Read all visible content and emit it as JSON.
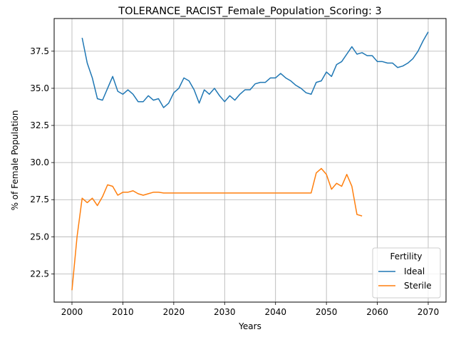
{
  "chart_data": {
    "type": "line",
    "title": "TOLERANCE_RACIST_Female_Population_Scoring: 3",
    "xlabel": "Years",
    "ylabel": "% of Female Population",
    "xlim": [
      1996.5,
      2073.5
    ],
    "ylim": [
      20.6,
      39.7
    ],
    "xticks": [
      2000,
      2010,
      2020,
      2030,
      2040,
      2050,
      2060,
      2070
    ],
    "yticks": [
      22.5,
      25.0,
      27.5,
      30.0,
      32.5,
      35.0,
      37.5
    ],
    "ytick_labels": [
      "22.5",
      "25.0",
      "27.5",
      "30.0",
      "32.5",
      "35.0",
      "37.5"
    ],
    "grid": true,
    "legend": {
      "title": "Fertility",
      "position": "lower-right"
    },
    "series": [
      {
        "name": "Ideal",
        "color": "#1f77b4",
        "x": [
          2002,
          2003,
          2004,
          2005,
          2006,
          2007,
          2008,
          2009,
          2010,
          2011,
          2012,
          2013,
          2014,
          2015,
          2016,
          2017,
          2018,
          2019,
          2020,
          2021,
          2022,
          2023,
          2024,
          2025,
          2026,
          2027,
          2028,
          2029,
          2030,
          2031,
          2032,
          2033,
          2034,
          2035,
          2036,
          2037,
          2038,
          2039,
          2040,
          2041,
          2042,
          2043,
          2044,
          2045,
          2046,
          2047,
          2048,
          2049,
          2050,
          2051,
          2052,
          2053,
          2054,
          2055,
          2056,
          2057,
          2058,
          2059,
          2060,
          2061,
          2062,
          2063,
          2064,
          2065,
          2066,
          2067,
          2068,
          2069,
          2070
        ],
        "y": [
          38.4,
          36.7,
          35.7,
          34.3,
          34.2,
          35.0,
          35.8,
          34.8,
          34.6,
          34.9,
          34.6,
          34.1,
          34.1,
          34.5,
          34.2,
          34.3,
          33.7,
          34.0,
          34.7,
          35.0,
          35.7,
          35.5,
          34.9,
          34.0,
          34.9,
          34.6,
          35.0,
          34.5,
          34.1,
          34.5,
          34.2,
          34.6,
          34.9,
          34.9,
          35.3,
          35.4,
          35.4,
          35.7,
          35.7,
          36.0,
          35.7,
          35.5,
          35.2,
          35.0,
          34.7,
          34.6,
          35.4,
          35.5,
          36.1,
          35.8,
          36.6,
          36.8,
          37.3,
          37.8,
          37.3,
          37.4,
          37.2,
          37.2,
          36.8,
          36.8,
          36.7,
          36.7,
          36.4,
          36.5,
          36.7,
          37.0,
          37.5,
          38.2,
          38.8
        ]
      },
      {
        "name": "Sterile",
        "color": "#ff7f0e",
        "x": [
          2000,
          2001,
          2002,
          2003,
          2004,
          2005,
          2006,
          2007,
          2008,
          2009,
          2010,
          2011,
          2012,
          2013,
          2014,
          2015,
          2016,
          2017,
          2018,
          2019,
          2020,
          2021,
          2022,
          2023,
          2024,
          2025,
          2026,
          2027,
          2028,
          2029,
          2030,
          2031,
          2032,
          2033,
          2034,
          2035,
          2036,
          2037,
          2038,
          2039,
          2040,
          2041,
          2042,
          2043,
          2044,
          2045,
          2046,
          2047,
          2048,
          2049,
          2050,
          2051,
          2052,
          2053,
          2054,
          2055,
          2056,
          2057
        ],
        "y": [
          21.4,
          25.0,
          27.6,
          27.3,
          27.6,
          27.1,
          27.7,
          28.5,
          28.4,
          27.8,
          28.0,
          28.0,
          28.1,
          27.9,
          27.8,
          27.9,
          28.0,
          28.0,
          27.95,
          27.95,
          27.95,
          27.95,
          27.95,
          27.95,
          27.95,
          27.95,
          27.95,
          27.95,
          27.95,
          27.95,
          27.95,
          27.95,
          27.95,
          27.95,
          27.95,
          27.95,
          27.95,
          27.95,
          27.95,
          27.95,
          27.95,
          27.95,
          27.95,
          27.95,
          27.95,
          27.95,
          27.95,
          27.95,
          29.3,
          29.6,
          29.2,
          28.2,
          28.6,
          28.4,
          29.2,
          28.4,
          26.5,
          26.4
        ]
      }
    ]
  }
}
